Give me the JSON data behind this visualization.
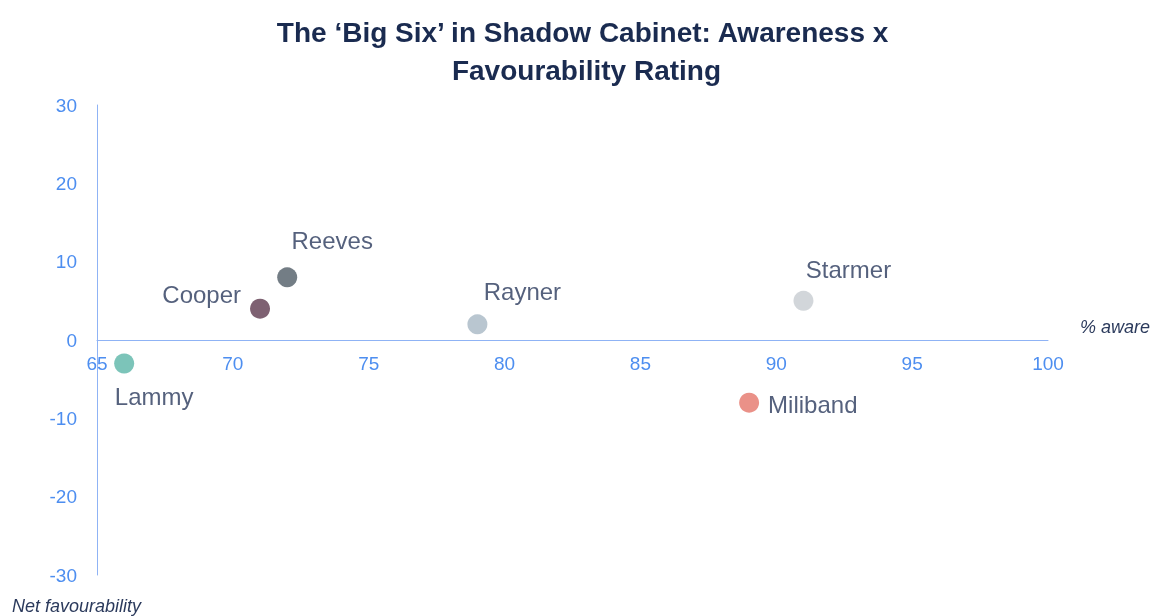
{
  "chart_data": {
    "type": "scatter",
    "title": "The ‘Big Six’ in Shadow Cabinet: Awareness x Favourability Rating",
    "xlabel": "% aware",
    "ylabel": "Net favourability",
    "series": [
      {
        "name": "Lammy",
        "color": "#5bb5a8",
        "x": [
          66
        ],
        "values": [
          -3
        ]
      },
      {
        "name": "Cooper",
        "color": "#5e3a4f",
        "x": [
          71
        ],
        "values": [
          4
        ]
      },
      {
        "name": "Reeves",
        "color": "#505c66",
        "x": [
          72
        ],
        "values": [
          8
        ]
      },
      {
        "name": "Rayner",
        "color": "#a8b8c4",
        "x": [
          79
        ],
        "values": [
          2
        ]
      },
      {
        "name": "Starmer",
        "color": "#c7ccd1",
        "x": [
          91
        ],
        "values": [
          5
        ]
      },
      {
        "name": "Miliband",
        "color": "#e5766a",
        "x": [
          89
        ],
        "values": [
          -8
        ]
      }
    ],
    "xlim": [
      65,
      100
    ],
    "xticks": [
      65,
      70,
      75,
      80,
      85,
      90,
      95,
      100
    ],
    "ylim": [
      -30,
      30
    ],
    "yticks": [
      -30,
      -20,
      -10,
      0,
      10,
      20,
      30
    ],
    "grid": false,
    "legend": false,
    "marker": "circle"
  }
}
